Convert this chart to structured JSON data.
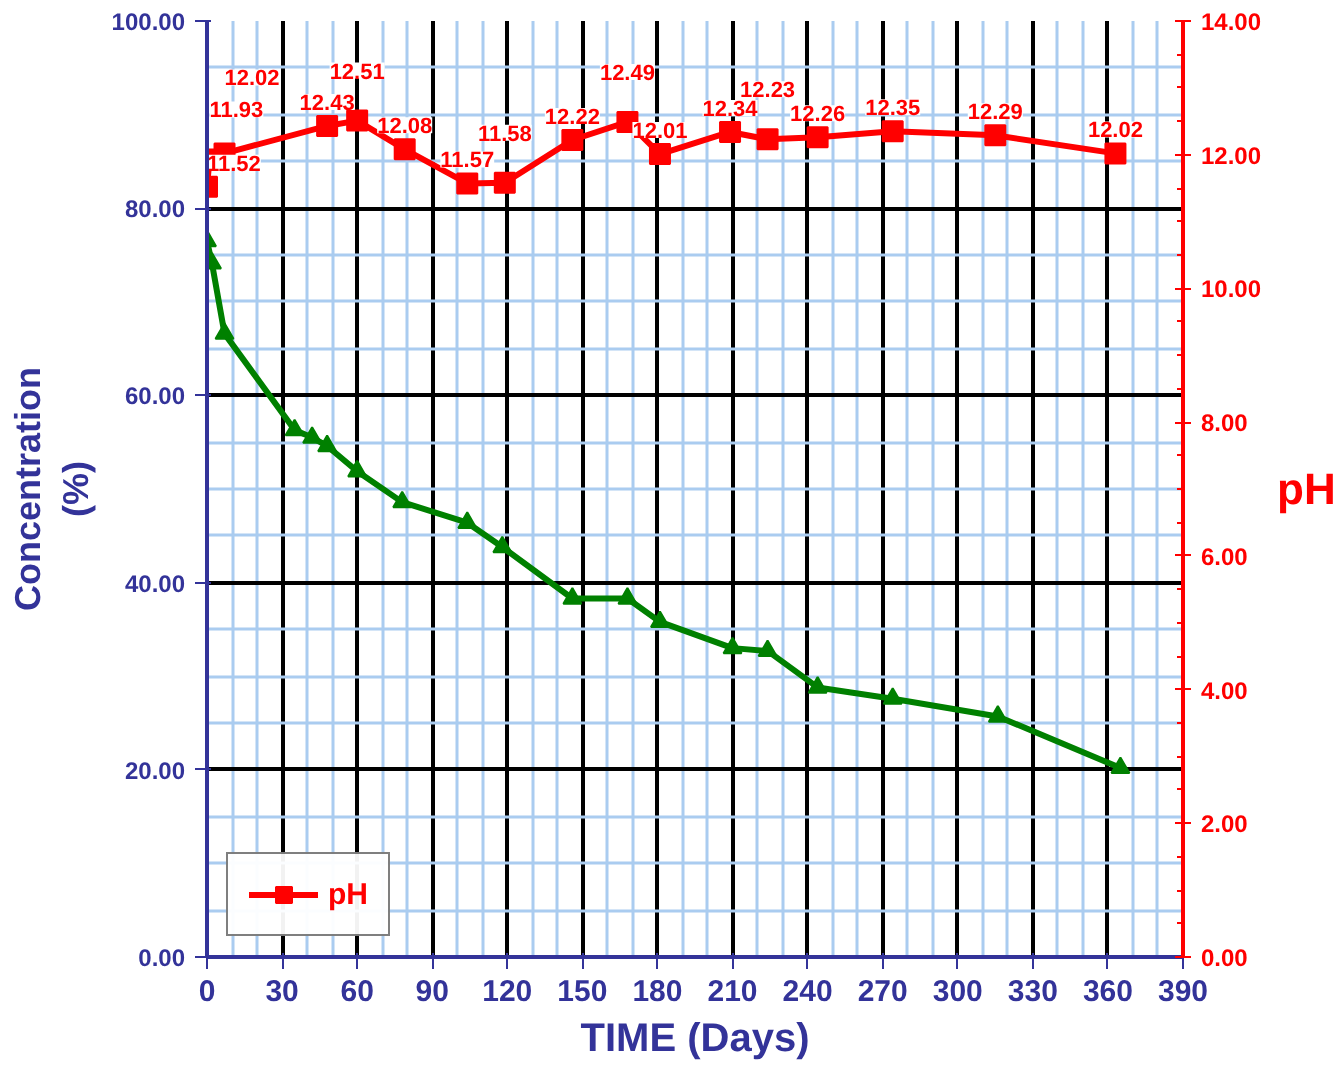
{
  "chart_data": {
    "type": "line",
    "xlabel": "TIME (Days)",
    "ylabel": "Concentration\n(%)",
    "y2label": "pH",
    "xlim": [
      0,
      390
    ],
    "xticks": [
      0,
      {
        "value": 10,
        "label": null
      },
      {
        "value": 20,
        "label": null
      },
      30,
      {
        "value": 40,
        "label": null
      },
      {
        "value": 50,
        "label": null
      },
      60,
      {
        "value": 70,
        "label": null
      },
      {
        "value": 80,
        "label": null
      },
      90,
      {
        "value": 100,
        "label": null
      },
      {
        "value": 110,
        "label": null
      },
      120,
      {
        "value": 130,
        "label": null
      },
      {
        "value": 140,
        "label": null
      },
      150,
      {
        "value": 160,
        "label": null
      },
      {
        "value": 170,
        "label": null
      },
      180,
      {
        "value": 190,
        "label": null
      },
      {
        "value": 200,
        "label": null
      },
      210,
      {
        "value": 220,
        "label": null
      },
      {
        "value": 230,
        "label": null
      },
      240,
      {
        "value": 250,
        "label": null
      },
      {
        "value": 260,
        "label": null
      },
      270,
      {
        "value": 280,
        "label": null
      },
      {
        "value": 290,
        "label": null
      },
      300,
      {
        "value": 310,
        "label": null
      },
      {
        "value": 320,
        "label": null
      },
      330,
      {
        "value": 340,
        "label": null
      },
      {
        "value": 350,
        "label": null
      },
      360,
      {
        "value": 370,
        "label": null
      },
      {
        "value": 380,
        "label": null
      },
      390
    ],
    "ylim": [
      0,
      100
    ],
    "yticks": [
      {
        "value": 0,
        "label": "0.00"
      },
      {
        "value": 5,
        "label": null
      },
      {
        "value": 10,
        "label": null
      },
      {
        "value": 15,
        "label": null
      },
      {
        "value": 20,
        "label": "20.00"
      },
      {
        "value": 25,
        "label": null
      },
      {
        "value": 30,
        "label": null
      },
      {
        "value": 35,
        "label": null
      },
      {
        "value": 40,
        "label": "40.00"
      },
      {
        "value": 45,
        "label": null
      },
      {
        "value": 50,
        "label": null
      },
      {
        "value": 55,
        "label": null
      },
      {
        "value": 60,
        "label": "60.00"
      },
      {
        "value": 65,
        "label": null
      },
      {
        "value": 70,
        "label": null
      },
      {
        "value": 75,
        "label": null
      },
      {
        "value": 80,
        "label": "80.00"
      },
      {
        "value": 85,
        "label": null
      },
      {
        "value": 90,
        "label": null
      },
      {
        "value": 95,
        "label": null
      },
      {
        "value": 100,
        "label": "100.00"
      }
    ],
    "y2lim": [
      0,
      14
    ],
    "y2ticks": [
      {
        "value": 0,
        "label": "0.00"
      },
      {
        "value": 0.5,
        "label": null
      },
      {
        "value": 1,
        "label": null
      },
      {
        "value": 1.5,
        "label": null
      },
      {
        "value": 2,
        "label": "2.00"
      },
      {
        "value": 2.5,
        "label": null
      },
      {
        "value": 3,
        "label": null
      },
      {
        "value": 3.5,
        "label": null
      },
      {
        "value": 4,
        "label": "4.00"
      },
      {
        "value": 4.5,
        "label": null
      },
      {
        "value": 5,
        "label": null
      },
      {
        "value": 5.5,
        "label": null
      },
      {
        "value": 6,
        "label": "6.00"
      },
      {
        "value": 6.5,
        "label": null
      },
      {
        "value": 7,
        "label": null
      },
      {
        "value": 7.5,
        "label": null
      },
      {
        "value": 8,
        "label": "8.00"
      },
      {
        "value": 8.5,
        "label": null
      },
      {
        "value": 9,
        "label": null
      },
      {
        "value": 9.5,
        "label": null
      },
      {
        "value": 10,
        "label": "10.00"
      },
      {
        "value": 10.5,
        "label": null
      },
      {
        "value": 11,
        "label": null
      },
      {
        "value": 11.5,
        "label": null
      },
      {
        "value": 12,
        "label": "12.00"
      },
      {
        "value": 12.5,
        "label": null
      },
      {
        "value": 13,
        "label": null
      },
      {
        "value": 13.5,
        "label": null
      },
      {
        "value": 14,
        "label": "14.00"
      }
    ],
    "grid": true,
    "legend": "bottom left",
    "line_style": "solid",
    "series": [
      {
        "color": "#008000",
        "marker": "triangle",
        "x": [
          0,
          2,
          7,
          35,
          42,
          48,
          60,
          78,
          104,
          118,
          146,
          168,
          181,
          210,
          224,
          244,
          274,
          316,
          365
        ],
        "values": [
          76.5,
          74.1,
          66.6,
          56.3,
          55.5,
          54.6,
          51.9,
          48.6,
          46.4,
          43.8,
          38.3,
          38.3,
          35.8,
          33.0,
          32.7,
          28.8,
          27.6,
          25.7,
          20.2
        ]
      },
      {
        "name": "pH",
        "color": "#ff0000",
        "marker": "square",
        "axis": "y2",
        "x": [
          0,
          1,
          7,
          48,
          60,
          79,
          104,
          119,
          146,
          168,
          181,
          209,
          224,
          244,
          274,
          315,
          363
        ],
        "values": [
          11.52,
          11.93,
          12.02,
          12.43,
          12.51,
          12.08,
          11.57,
          11.58,
          12.22,
          12.49,
          12.01,
          12.34,
          12.23,
          12.26,
          12.35,
          12.29,
          12.02
        ],
        "value_labels": [
          "11.52",
          "11.93",
          "12.02",
          "12.43",
          "12.51",
          "12.08",
          "11.57",
          "11.58",
          "12.22",
          "12.49",
          "12.01",
          "12.34",
          "12.23",
          "12.26",
          "12.35",
          "12.29",
          "12.02"
        ]
      }
    ]
  }
}
